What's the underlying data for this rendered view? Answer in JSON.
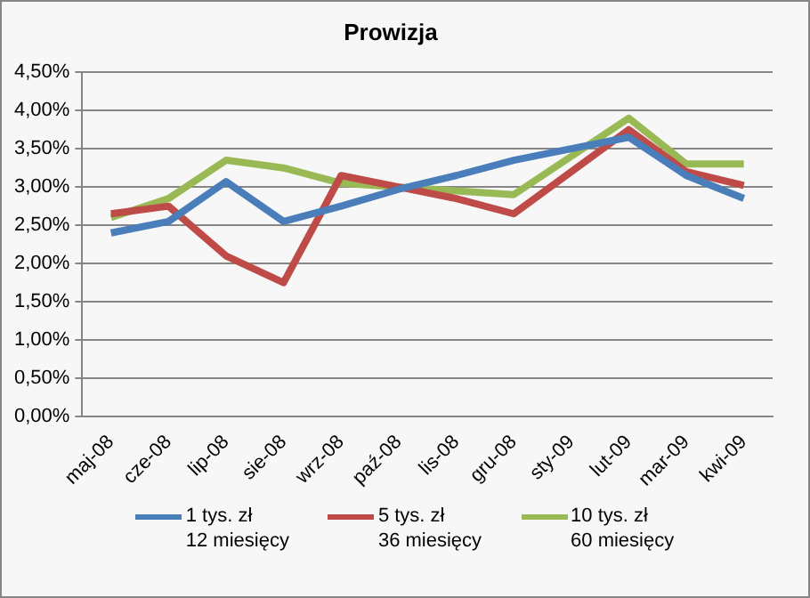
{
  "chart_data": {
    "type": "line",
    "title": "Prowizja",
    "categories": [
      "maj-08",
      "cze-08",
      "lip-08",
      "sie-08",
      "wrz-08",
      "paź-08",
      "lis-08",
      "gru-08",
      "sty-09",
      "lut-09",
      "mar-09",
      "kwi-09"
    ],
    "series": [
      {
        "name": "1 tys. zł\n12 miesięcy",
        "color": "#4a7ebb",
        "values": [
          2.4,
          2.55,
          3.07,
          2.55,
          2.75,
          2.97,
          3.15,
          3.35,
          3.5,
          3.65,
          3.15,
          2.85
        ]
      },
      {
        "name": "5 tys. zł\n36 miesięcy",
        "color": "#be4b48",
        "values": [
          2.65,
          2.75,
          2.1,
          1.75,
          3.15,
          3.0,
          2.85,
          2.65,
          3.2,
          3.75,
          3.2,
          3.02
        ]
      },
      {
        "name": "10 tys. zł\n60 miesięcy",
        "color": "#98b954",
        "values": [
          2.6,
          2.85,
          3.35,
          3.25,
          3.05,
          3.0,
          2.95,
          2.9,
          3.4,
          3.9,
          3.3,
          3.3
        ]
      }
    ],
    "ylim": [
      0,
      4.5
    ],
    "yticks": [
      {
        "value": 0,
        "label": "0,00%"
      },
      {
        "value": 0.5,
        "label": "0,50%"
      },
      {
        "value": 1,
        "label": "1,00%"
      },
      {
        "value": 1.5,
        "label": "1,50%"
      },
      {
        "value": 2,
        "label": "2,00%"
      },
      {
        "value": 2.5,
        "label": "2,50%"
      },
      {
        "value": 3,
        "label": "3,00%"
      },
      {
        "value": 3.5,
        "label": "3,50%"
      },
      {
        "value": 4,
        "label": "4,00%"
      },
      {
        "value": 4.5,
        "label": "4,50%"
      }
    ],
    "grid": "y",
    "legend": "bottom",
    "marker": "none",
    "line_style": "solid"
  }
}
